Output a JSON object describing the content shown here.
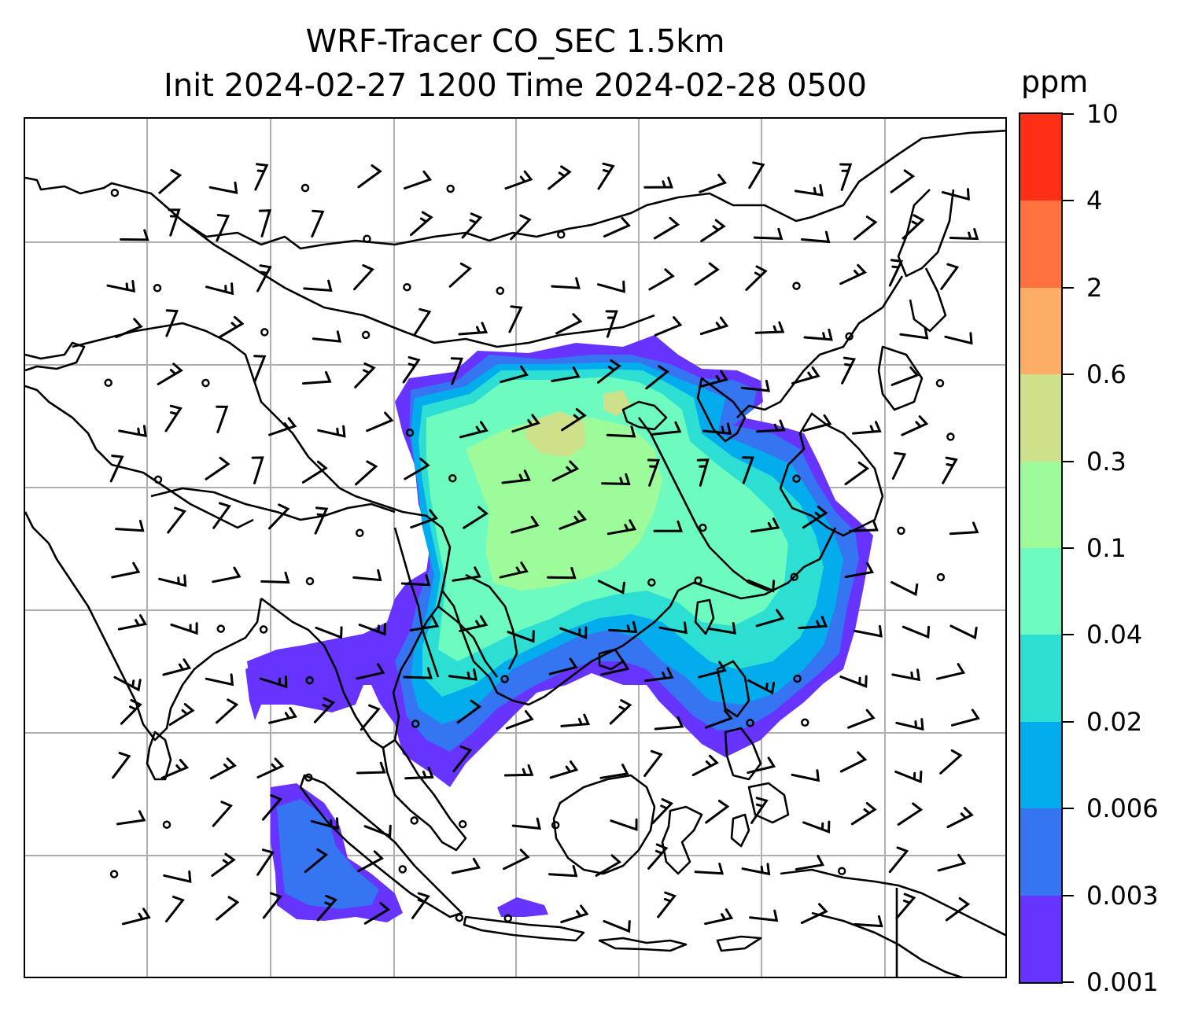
{
  "title": {
    "line1": "WRF-Tracer CO_SEC 1.5km",
    "line2": "Init 2024-02-27 1200 Time 2024-02-28 0500"
  },
  "colorbar": {
    "unit": "ppm",
    "levels": [
      "0.001",
      "0.003",
      "0.006",
      "0.02",
      "0.04",
      "0.1",
      "0.3",
      "0.6",
      "2",
      "4",
      "10"
    ],
    "colors": [
      "#6633ff",
      "#3575f2",
      "#03aded",
      "#2ddfd2",
      "#6dfbc0",
      "#9dfb9a",
      "#cfe08a",
      "#feae64",
      "#ff7240",
      "#ff2f16"
    ]
  },
  "map": {
    "gridline_color": "#b0b0b0",
    "coastline_color": "#000000",
    "wind_barb_color": "#000000",
    "map_icon": "coastline-map",
    "barb_icon": "wind-barb"
  }
}
